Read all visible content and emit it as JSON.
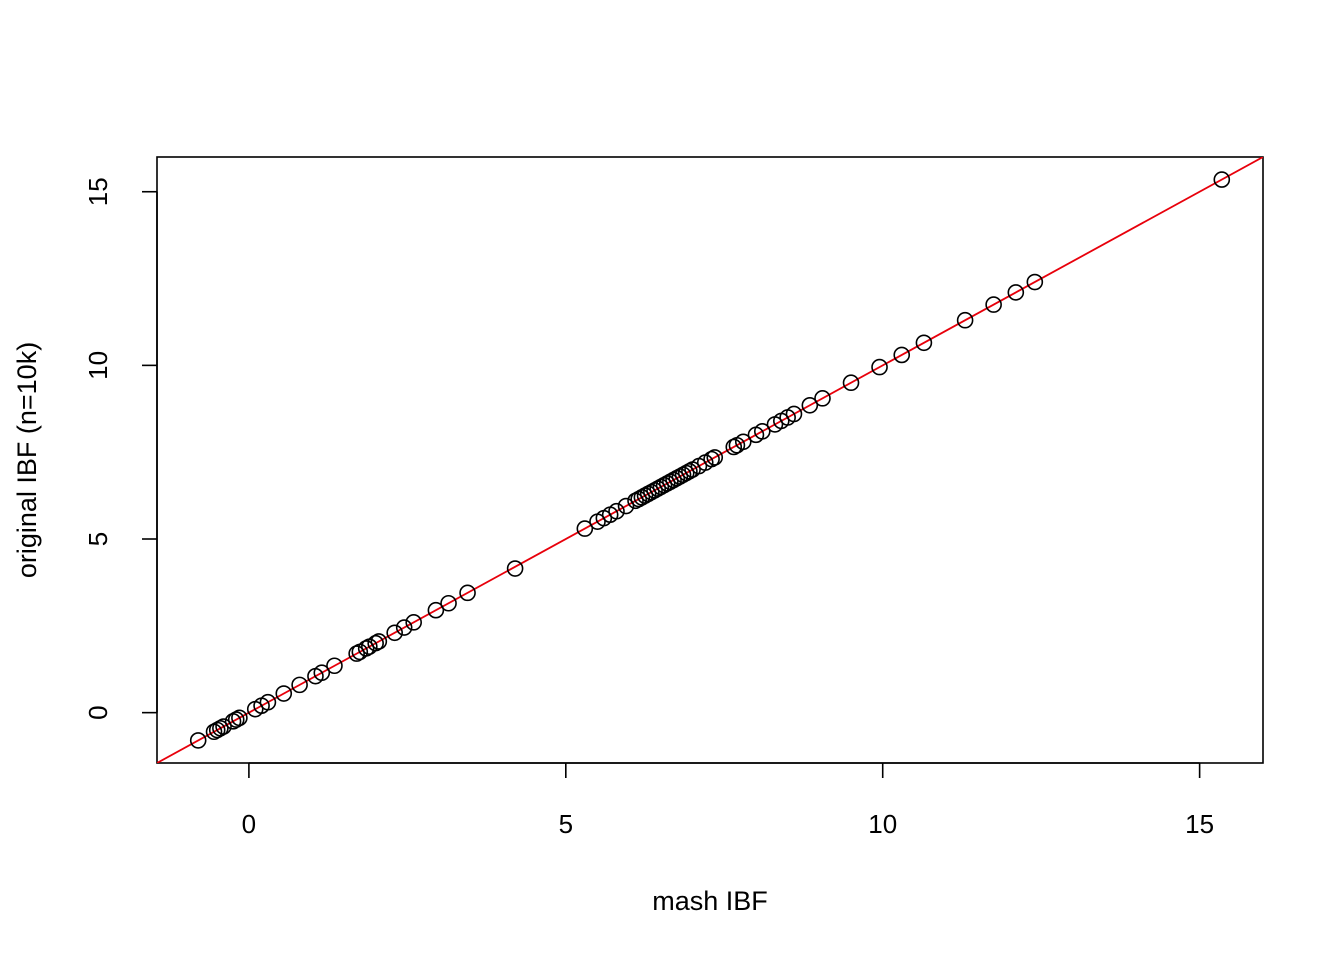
{
  "chart_data": {
    "type": "scatter",
    "title": "",
    "xlabel": "mash IBF",
    "ylabel": "original IBF (n=10k)",
    "xlim": [
      -1.45,
      16.0
    ],
    "ylim": [
      -1.45,
      16.0
    ],
    "x_ticks": [
      0,
      5,
      10,
      15
    ],
    "y_ticks": [
      0,
      5,
      10,
      15
    ],
    "grid": false,
    "legend": "none",
    "reference_line": {
      "slope": 1,
      "intercept": 0,
      "color": "#e8000b"
    },
    "point_color": "#000000",
    "x": [
      -0.8,
      -0.55,
      -0.5,
      -0.45,
      -0.4,
      -0.25,
      -0.2,
      -0.15,
      0.1,
      0.2,
      0.3,
      0.55,
      0.8,
      1.05,
      1.15,
      1.35,
      1.7,
      1.75,
      1.85,
      1.9,
      2.0,
      2.05,
      2.3,
      2.45,
      2.6,
      2.95,
      3.15,
      3.45,
      4.2,
      5.3,
      5.5,
      5.6,
      5.7,
      5.8,
      5.95,
      6.1,
      6.15,
      6.2,
      6.25,
      6.3,
      6.35,
      6.4,
      6.45,
      6.5,
      6.55,
      6.6,
      6.65,
      6.7,
      6.75,
      6.8,
      6.85,
      6.9,
      6.95,
      7.0,
      7.1,
      7.2,
      7.3,
      7.35,
      7.65,
      7.7,
      7.8,
      8.0,
      8.1,
      8.3,
      8.4,
      8.5,
      8.6,
      8.85,
      9.05,
      9.5,
      9.95,
      10.3,
      10.65,
      11.3,
      11.75,
      12.1,
      12.4,
      15.35
    ],
    "y": [
      -0.8,
      -0.55,
      -0.5,
      -0.45,
      -0.4,
      -0.25,
      -0.2,
      -0.15,
      0.1,
      0.2,
      0.3,
      0.55,
      0.8,
      1.05,
      1.15,
      1.35,
      1.7,
      1.75,
      1.85,
      1.9,
      2.0,
      2.05,
      2.3,
      2.45,
      2.6,
      2.95,
      3.15,
      3.45,
      4.15,
      5.3,
      5.5,
      5.6,
      5.7,
      5.8,
      5.95,
      6.1,
      6.15,
      6.2,
      6.25,
      6.3,
      6.35,
      6.4,
      6.45,
      6.5,
      6.55,
      6.6,
      6.65,
      6.7,
      6.75,
      6.8,
      6.85,
      6.9,
      6.95,
      7.0,
      7.1,
      7.2,
      7.3,
      7.35,
      7.65,
      7.7,
      7.8,
      8.0,
      8.1,
      8.3,
      8.4,
      8.5,
      8.6,
      8.85,
      9.05,
      9.5,
      9.95,
      10.3,
      10.65,
      11.3,
      11.75,
      12.1,
      12.4,
      15.35
    ]
  }
}
